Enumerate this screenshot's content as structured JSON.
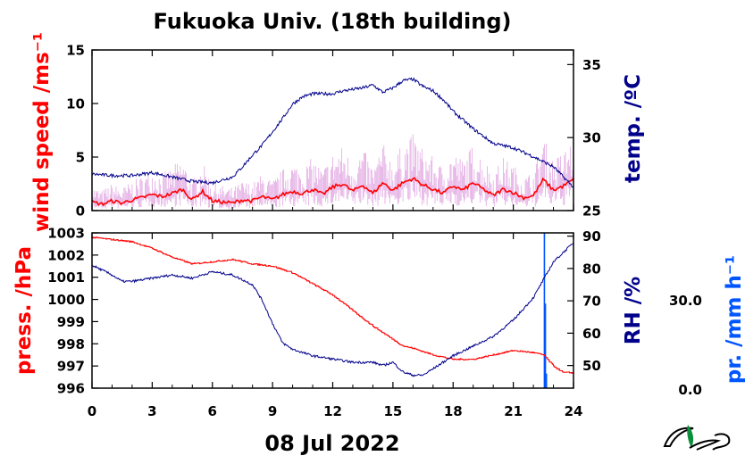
{
  "title": "Fukuoka Univ. (18th building)",
  "date_label": "08 Jul 2022",
  "colors": {
    "wind": "#ff0000",
    "wind_raw": "#dd99dd",
    "temp": "#00008b",
    "rh": "#00008b",
    "pressure": "#ff0000",
    "precip": "#0055ff"
  },
  "logo_icon": "leaf-logo-icon",
  "chart_data": [
    {
      "type": "line",
      "panel": "top",
      "x_unit": "hour",
      "xlim": [
        0,
        24
      ],
      "xticks": [
        0,
        3,
        6,
        9,
        12,
        15,
        18,
        21,
        24
      ],
      "left_axis": {
        "label": "wind speed /ms⁻¹",
        "ylim": [
          0,
          15
        ],
        "ticks": [
          0,
          5,
          10,
          15
        ]
      },
      "right_axis": {
        "label": "temp. /ºC",
        "ylim": [
          25,
          36
        ],
        "ticks": [
          25,
          30,
          35
        ]
      },
      "series": [
        {
          "axis": "left",
          "style": "wind-avg",
          "x": [
            0,
            0.5,
            1,
            1.5,
            2,
            2.5,
            3,
            3.5,
            4,
            4.5,
            5,
            5.5,
            6,
            6.5,
            7,
            7.5,
            8,
            8.5,
            9,
            9.5,
            10,
            10.5,
            11,
            11.5,
            12,
            12.5,
            13,
            13.5,
            14,
            14.5,
            15,
            15.5,
            16,
            16.5,
            17,
            17.5,
            18,
            18.5,
            19,
            19.5,
            20,
            20.5,
            21,
            21.5,
            22,
            22.5,
            23,
            23.5,
            24
          ],
          "values": [
            0.8,
            0.6,
            0.9,
            0.7,
            1.0,
            1.2,
            1.5,
            1.3,
            1.6,
            2.0,
            1.0,
            1.8,
            0.9,
            0.8,
            0.7,
            1.0,
            0.9,
            1.3,
            1.0,
            1.5,
            1.8,
            1.6,
            2.0,
            1.5,
            2.2,
            2.5,
            1.8,
            2.4,
            1.6,
            2.6,
            1.9,
            2.6,
            3.0,
            2.4,
            2.0,
            1.6,
            2.3,
            1.9,
            2.6,
            2.0,
            1.4,
            2.0,
            1.7,
            1.2,
            1.4,
            2.9,
            1.9,
            2.3,
            2.9
          ]
        },
        {
          "axis": "right",
          "style": "temp",
          "x": [
            0,
            1,
            2,
            3,
            4,
            5,
            6,
            7,
            7.5,
            8,
            8.5,
            9,
            9.5,
            10,
            10.5,
            11,
            11.5,
            12,
            12.5,
            13,
            13.5,
            14,
            14.5,
            15,
            15.5,
            16,
            16.5,
            17,
            17.5,
            18,
            19,
            20,
            21,
            22,
            23,
            24
          ],
          "values": [
            27.5,
            27.4,
            27.4,
            27.6,
            27.3,
            27.0,
            26.9,
            27.3,
            28.0,
            28.8,
            29.5,
            30.4,
            31.3,
            32.3,
            32.8,
            33.0,
            33.0,
            33.0,
            33.2,
            33.3,
            33.4,
            33.6,
            33.1,
            33.4,
            33.9,
            34.0,
            33.5,
            33.2,
            32.6,
            31.8,
            30.6,
            29.6,
            29.3,
            28.7,
            28.0,
            26.6
          ]
        }
      ]
    },
    {
      "type": "line",
      "panel": "bottom",
      "x_unit": "hour",
      "xlim": [
        0,
        24
      ],
      "xticks": [
        0,
        3,
        6,
        9,
        12,
        15,
        18,
        21,
        24
      ],
      "xticklabels": [
        "0",
        "3",
        "6",
        "9",
        "12",
        "15",
        "18",
        "21",
        "24"
      ],
      "left_axis": {
        "label": "press. /hPa",
        "ylim": [
          996,
          1003
        ],
        "ticks": [
          996,
          997,
          998,
          999,
          1000,
          1001,
          1002,
          1003
        ]
      },
      "right_axis": {
        "label": "RH /%",
        "ylim": [
          43,
          91
        ],
        "ticks": [
          50,
          60,
          70,
          80,
          90
        ]
      },
      "precip_axis": {
        "label": "pr. /mm h⁻¹",
        "ticks": [
          "0.0",
          "30.0"
        ]
      },
      "series": [
        {
          "axis": "left",
          "style": "pressure",
          "x": [
            0,
            1,
            2,
            3,
            4,
            5,
            6,
            7,
            8,
            9,
            10,
            11,
            12,
            13,
            14,
            14.5,
            15,
            15.5,
            16,
            17,
            18,
            19,
            20,
            21,
            22,
            22.5,
            23,
            23.5,
            24
          ],
          "values": [
            1002.8,
            1002.7,
            1002.6,
            1002.3,
            1001.9,
            1001.6,
            1001.7,
            1001.8,
            1001.6,
            1001.5,
            1001.2,
            1000.7,
            1000.2,
            999.5,
            998.8,
            998.5,
            998.2,
            997.9,
            997.8,
            997.5,
            997.3,
            997.3,
            997.5,
            997.7,
            997.6,
            997.5,
            997.0,
            996.7,
            996.7
          ]
        },
        {
          "axis": "right",
          "style": "rh",
          "x": [
            0,
            1,
            1.5,
            2,
            3,
            4,
            5,
            6,
            7,
            8,
            8.5,
            9,
            9.5,
            10,
            11,
            12,
            13,
            14,
            14.5,
            15,
            15.5,
            16,
            16.5,
            17,
            18,
            19,
            20,
            21,
            22,
            23,
            24
          ],
          "values": [
            81,
            78,
            76,
            76,
            77,
            78,
            77,
            79,
            78,
            75,
            70,
            63,
            57,
            55,
            53,
            52,
            51,
            51,
            50,
            51,
            48,
            47,
            47,
            49,
            53,
            56,
            59,
            64,
            71,
            82,
            88
          ]
        },
        {
          "axis": "precip",
          "style": "precip",
          "x": [
            22.55,
            22.6,
            22.65
          ],
          "values": [
            100,
            29,
            5
          ]
        }
      ]
    }
  ]
}
